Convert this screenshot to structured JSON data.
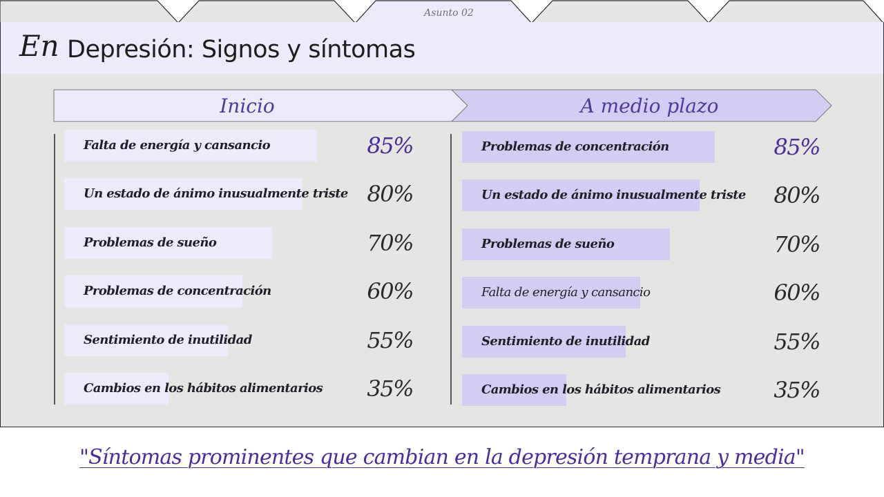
{
  "tabs": {
    "active_label": "Asunto 02"
  },
  "header": {
    "brand": "En",
    "title": "Depresión: Signos y síntomas"
  },
  "colors": {
    "accent": "#4a2d97",
    "bar_left": "#ecebfb",
    "bar_right": "#d4ccf2",
    "panel": "#e5e5e3"
  },
  "chart_data": [
    {
      "type": "bar",
      "orientation": "horizontal",
      "title": "Inicio",
      "categories": [
        "Falta de energía y cansancio",
        "Un estado de ánimo inusualmente triste",
        "Problemas de sueño",
        "Problemas de concentración",
        "Sentimiento de inutilidad",
        "Cambios en los hábitos alimentarios"
      ],
      "values": [
        85,
        80,
        70,
        60,
        55,
        35
      ],
      "value_labels": [
        "85%",
        "80%",
        "70%",
        "60%",
        "55%",
        "35%"
      ],
      "unit": "%",
      "xlim": [
        0,
        100
      ]
    },
    {
      "type": "bar",
      "orientation": "horizontal",
      "title": "A medio plazo",
      "categories": [
        "Problemas de concentración",
        "Un estado de ánimo inusualmente triste",
        "Problemas de sueño",
        "Falta de energía y cansancio",
        "Sentimiento de inutilidad",
        "Cambios en los hábitos alimentarios"
      ],
      "values": [
        85,
        80,
        70,
        60,
        55,
        35
      ],
      "value_labels": [
        "85%",
        "80%",
        "70%",
        "60%",
        "55%",
        "35%"
      ],
      "unit": "%",
      "xlim": [
        0,
        100
      ]
    }
  ],
  "caption": "\"Síntomas prominentes que cambian en la depresión temprana y media\""
}
